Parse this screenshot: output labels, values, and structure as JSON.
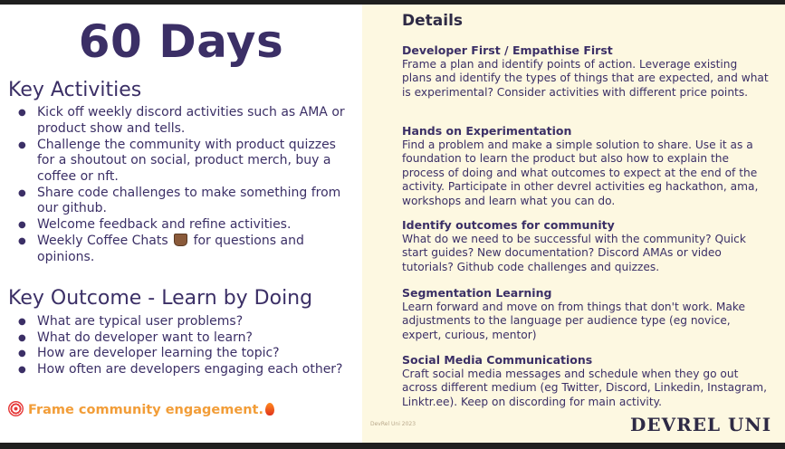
{
  "left": {
    "title": "60 Days",
    "activities_heading": "Key Activities",
    "activities": [
      {
        "text": "Kick off weekly discord activities such as AMA or product show and tells."
      },
      {
        "text": "Challenge the community with product quizzes for a shoutout on social, product merch, buy a coffee or nft."
      },
      {
        "text": "Share code challenges to make something from our github."
      },
      {
        "text": "Welcome feedback and refine activities."
      },
      {
        "pre": "Weekly Coffee Chats",
        "post": "for questions and opinions.",
        "icon": "coffee-icon"
      }
    ],
    "outcome_heading": "Key Outcome - Learn by Doing",
    "outcomes": [
      "What are typical user problems?",
      "What do developer want to learn?",
      "How are developer learning the topic?",
      "How often are developers engaging each other?"
    ],
    "frame_line": "Frame community engagement.",
    "frame_icons": [
      "target-icon",
      "fire-icon"
    ],
    "accent_color": "#f29d38",
    "text_color": "#3b2f66"
  },
  "right": {
    "details_title": "Details",
    "sections": [
      {
        "heading": "Developer First / Empathise First",
        "body": "Frame a plan and identify points of action.  Leverage existing plans and identify the types of things that are expected, and what is experimental? Consider activities with different price points."
      },
      {
        "heading": "Hands on Experimentation",
        "body": "Find a problem and make a simple solution to share.  Use it as a foundation to learn the product but also how to explain the process of doing and what outcomes to expect at the end of the activity. Participate in other devrel activities eg hackathon, ama, workshops and learn what you can do."
      },
      {
        "heading": "Identify outcomes for community",
        "body": "What do we need to be successful with the community? Quick start guides?  New documentation? Discord AMAs or video tutorials? Github code challenges and quizzes."
      },
      {
        "heading": "Segmentation Learning",
        "body": "Learn forward and move on from things that don't work. Make adjustments to the language per audience type (eg novice, expert, curious, mentor)"
      },
      {
        "heading": "Social Media Communications",
        "body": "Craft social media messages and schedule when they go out across different medium (eg Twitter, Discord, Linkedin, Instagram, Linktr.ee).  Keep on discording for main activity."
      }
    ],
    "footnote": "DevRel Uni 2023",
    "logo": "DEVREL UNI",
    "background": "#fdf8e1"
  }
}
